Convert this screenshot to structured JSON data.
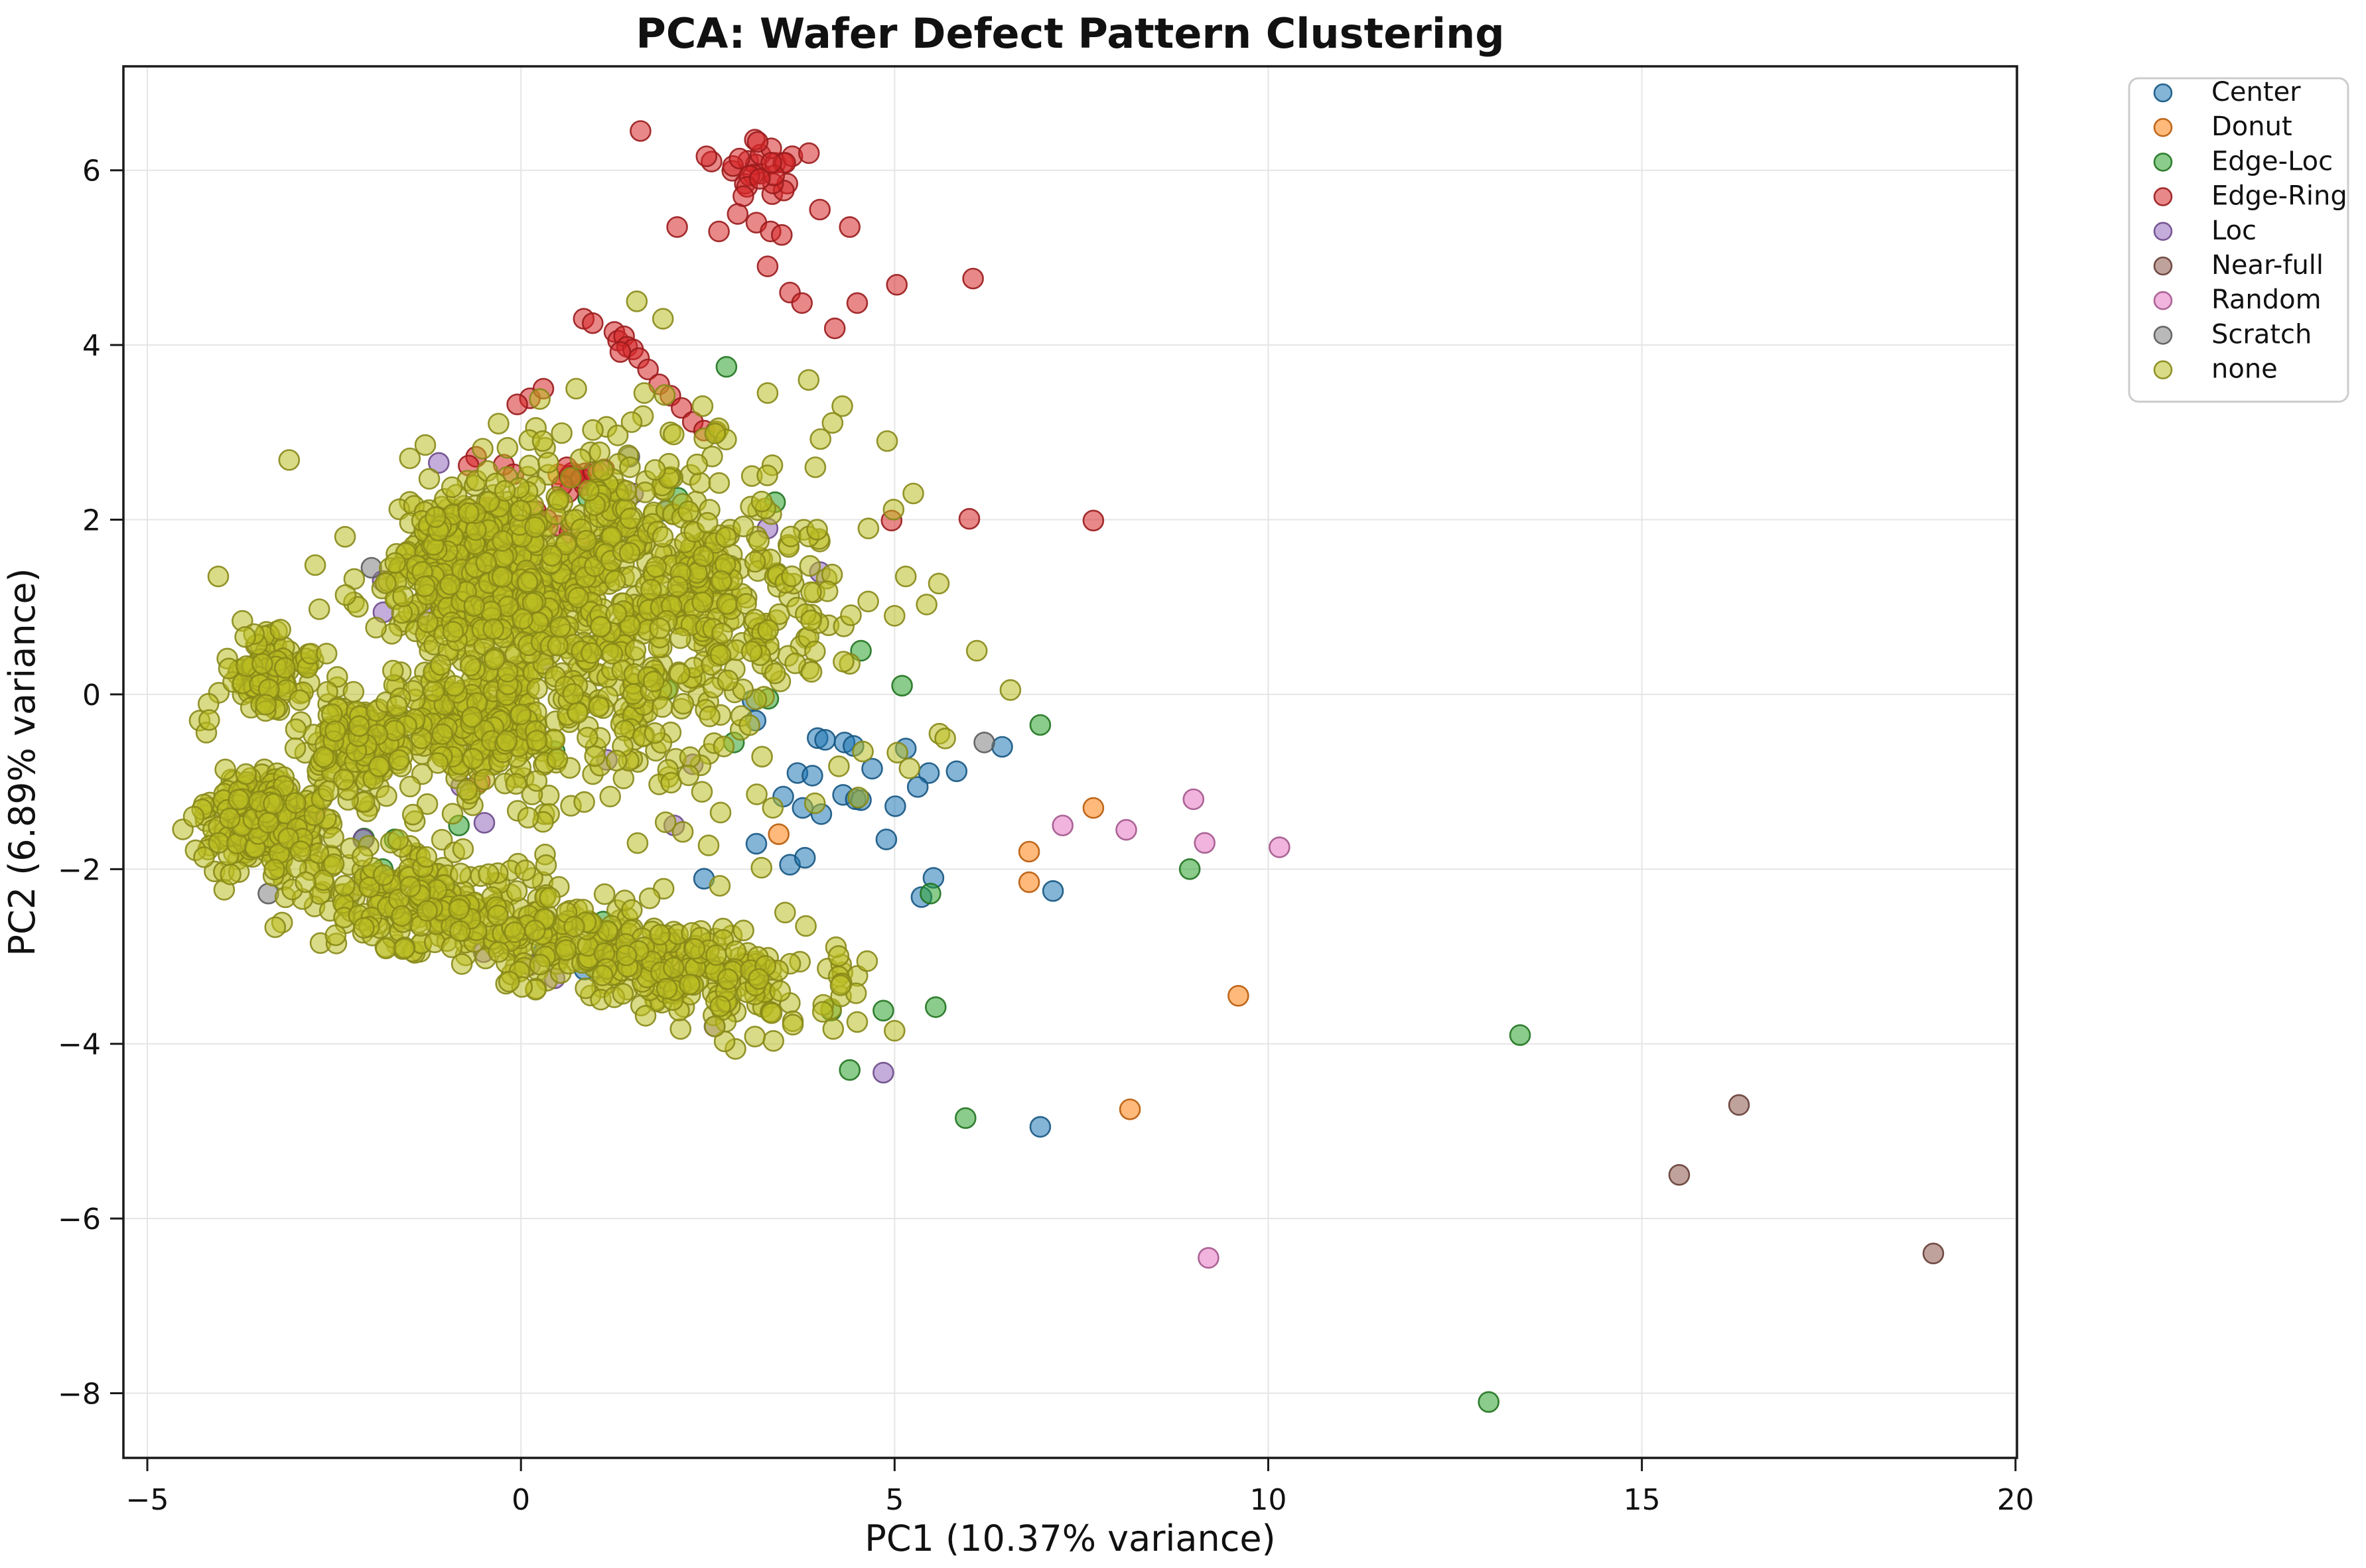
{
  "title": "PCA: Wafer Defect Pattern Clustering",
  "axes": {
    "xlabel": "PC1 (10.37% variance)",
    "ylabel": "PC2 (6.89% variance)",
    "xlim": [
      -5.32,
      20.02
    ],
    "ylim": [
      -8.74,
      7.19
    ],
    "xticks": [
      -5,
      0,
      5,
      10,
      15,
      20
    ],
    "yticks": [
      -8,
      -6,
      -4,
      -2,
      0,
      2,
      4,
      6
    ],
    "grid": true,
    "grid_color": "#e5e5e5",
    "spine_color": "#1a1a1a",
    "background": "#ffffff"
  },
  "legend": {
    "position": "upper-right-outside",
    "entries": [
      {
        "label": "Center",
        "color": "#1f77b4"
      },
      {
        "label": "Donut",
        "color": "#ff7f0e"
      },
      {
        "label": "Edge-Loc",
        "color": "#2ca02c"
      },
      {
        "label": "Edge-Ring",
        "color": "#d62728"
      },
      {
        "label": "Loc",
        "color": "#9467bd"
      },
      {
        "label": "Near-full",
        "color": "#8c564b"
      },
      {
        "label": "Random",
        "color": "#e377c2"
      },
      {
        "label": "Scratch",
        "color": "#7f7f7f"
      },
      {
        "label": "none",
        "color": "#bcbd22"
      }
    ]
  },
  "chart_data": {
    "type": "scatter",
    "title": "PCA: Wafer Defect Pattern Clustering",
    "xlabel": "PC1 (10.37% variance)",
    "ylabel": "PC2 (6.89% variance)",
    "xlim": [
      -5.32,
      20.02
    ],
    "ylim": [
      -8.74,
      7.19
    ],
    "xticks": [
      -5,
      0,
      5,
      10,
      15,
      20
    ],
    "yticks": [
      -8,
      -6,
      -4,
      -2,
      0,
      2,
      4,
      6
    ],
    "legend_position": "upper right outside",
    "grid": true,
    "marker": {
      "radius_px": 15,
      "fill_opacity": 0.55,
      "stroke_opacity": 0.9,
      "stroke_width": 2.6
    },
    "series": [
      {
        "name": "Center",
        "color": "#1f77b4",
        "points": [
          [
            3.1,
            -0.07
          ],
          [
            3.14,
            -0.3
          ],
          [
            3.97,
            -0.5
          ],
          [
            4.07,
            -0.52
          ],
          [
            4.33,
            -0.55
          ],
          [
            4.45,
            -0.59
          ],
          [
            3.7,
            -0.9
          ],
          [
            3.9,
            -0.93
          ],
          [
            5.46,
            -0.9
          ],
          [
            5.83,
            -0.88
          ],
          [
            5.31,
            -1.06
          ],
          [
            4.31,
            -1.15
          ],
          [
            4.48,
            -1.2
          ],
          [
            4.55,
            -1.21
          ],
          [
            3.51,
            -1.17
          ],
          [
            3.77,
            -1.3
          ],
          [
            4.02,
            -1.37
          ],
          [
            5.01,
            -1.28
          ],
          [
            4.89,
            -1.66
          ],
          [
            3.15,
            -1.71
          ],
          [
            3.6,
            -1.95
          ],
          [
            3.8,
            -1.87
          ],
          [
            5.36,
            -2.32
          ],
          [
            5.52,
            -2.1
          ],
          [
            2.45,
            -2.11
          ],
          [
            0.3,
            -2.95
          ],
          [
            0.85,
            -3.15
          ],
          [
            7.12,
            -2.25
          ],
          [
            6.44,
            -0.6
          ],
          [
            1.95,
            2.1
          ],
          [
            6.95,
            -4.95
          ],
          [
            4.7,
            -0.85
          ],
          [
            5.15,
            -0.62
          ]
        ]
      },
      {
        "name": "Donut",
        "color": "#ff7f0e",
        "points": [
          [
            3.45,
            -1.6
          ],
          [
            6.8,
            -1.8
          ],
          [
            6.8,
            -2.15
          ],
          [
            7.66,
            -1.3
          ],
          [
            9.6,
            -3.45
          ],
          [
            8.15,
            -4.75
          ],
          [
            0.5,
            2.52
          ],
          [
            2.05,
            -3.05
          ]
        ]
      },
      {
        "name": "Edge-Loc",
        "color": "#2ca02c",
        "points": [
          [
            3.31,
            -0.05
          ],
          [
            6.95,
            -0.35
          ],
          [
            8.95,
            -2.0
          ],
          [
            13.37,
            -3.9
          ],
          [
            12.95,
            -8.1
          ],
          [
            5.48,
            -2.28
          ],
          [
            2.75,
            3.75
          ],
          [
            0.9,
            2.25
          ],
          [
            2.1,
            2.25
          ],
          [
            3.4,
            2.2
          ],
          [
            4.55,
            0.5
          ],
          [
            5.1,
            0.1
          ],
          [
            1.95,
            0.05
          ],
          [
            2.85,
            -0.55
          ],
          [
            -2.1,
            -1.65
          ],
          [
            -1.85,
            -2.0
          ],
          [
            -0.83,
            -1.5
          ],
          [
            1.1,
            -2.6
          ],
          [
            2.1,
            -3.3
          ],
          [
            4.15,
            -3.62
          ],
          [
            4.85,
            -3.62
          ],
          [
            5.55,
            -3.58
          ],
          [
            4.4,
            -4.3
          ],
          [
            5.95,
            -4.85
          ],
          [
            0.45,
            -0.65
          ],
          [
            1.3,
            1.95
          ],
          [
            -1.69,
            -1.66
          ]
        ]
      },
      {
        "name": "Edge-Ring",
        "color": "#d62728",
        "points": [
          [
            1.6,
            6.45
          ],
          [
            2.55,
            6.1
          ],
          [
            2.9,
            5.5
          ],
          [
            3.15,
            5.4
          ],
          [
            3.34,
            5.3
          ],
          [
            3.49,
            5.26
          ],
          [
            4.0,
            5.55
          ],
          [
            4.4,
            5.35
          ],
          [
            2.09,
            5.35
          ],
          [
            2.65,
            5.3
          ],
          [
            3.6,
            4.6
          ],
          [
            3.76,
            4.48
          ],
          [
            6.05,
            4.76
          ],
          [
            4.2,
            4.19
          ],
          [
            0.84,
            4.3
          ],
          [
            0.96,
            4.25
          ],
          [
            1.25,
            4.15
          ],
          [
            1.3,
            4.05
          ],
          [
            1.38,
            4.1
          ],
          [
            1.42,
            3.98
          ],
          [
            1.5,
            3.95
          ],
          [
            1.33,
            3.92
          ],
          [
            1.58,
            3.85
          ],
          [
            1.7,
            3.72
          ],
          [
            1.85,
            3.55
          ],
          [
            2.0,
            3.42
          ],
          [
            2.15,
            3.28
          ],
          [
            2.3,
            3.12
          ],
          [
            2.45,
            3.02
          ],
          [
            2.61,
            3.01
          ],
          [
            0.12,
            3.39
          ],
          [
            -0.05,
            3.32
          ],
          [
            0.3,
            3.5
          ],
          [
            -0.23,
            2.63
          ],
          [
            -0.1,
            2.52
          ],
          [
            -0.45,
            2.14
          ],
          [
            -0.6,
            2.72
          ],
          [
            -0.7,
            2.62
          ],
          [
            -0.94,
            1.7
          ],
          [
            4.96,
            1.99
          ],
          [
            6.0,
            2.01
          ],
          [
            7.66,
            1.99
          ],
          [
            0.2,
            2.1
          ],
          [
            0.35,
            2.0
          ],
          [
            0.5,
            1.93
          ],
          [
            0.65,
            1.85
          ],
          [
            0.8,
            1.75
          ],
          [
            0.95,
            1.65
          ],
          [
            -0.55,
            -1.0
          ],
          [
            -2.75,
            -1.33
          ],
          [
            3.3,
            4.9
          ],
          [
            5.03,
            4.69
          ],
          [
            4.5,
            4.48
          ]
        ],
        "clusters": [
          {
            "cx": 3.27,
            "cy": 6.05,
            "sx": 0.24,
            "sy": 0.18,
            "n": 28
          },
          {
            "cx": 0.65,
            "cy": 2.5,
            "sx": 0.2,
            "sy": 0.08,
            "n": 11
          }
        ]
      },
      {
        "name": "Loc",
        "color": "#9467bd",
        "points": [
          [
            -1.1,
            2.65
          ],
          [
            0.85,
            1.6
          ],
          [
            1.5,
            2.3
          ],
          [
            3.3,
            1.9
          ],
          [
            4.0,
            1.4
          ],
          [
            1.15,
            -0.75
          ],
          [
            2.3,
            -0.8
          ],
          [
            2.05,
            -1.5
          ],
          [
            -0.5,
            -2.95
          ],
          [
            0.12,
            -3.1
          ],
          [
            -1.3,
            0.9
          ],
          [
            0.3,
            0.4
          ],
          [
            4.85,
            -4.33
          ],
          [
            -1.85,
            1.3
          ],
          [
            -1.84,
            0.94
          ],
          [
            -2.11,
            -1.66
          ],
          [
            -0.8,
            -1.05
          ],
          [
            -0.49,
            -1.47
          ],
          [
            2.59,
            -3.8
          ],
          [
            0.45,
            -3.25
          ]
        ]
      },
      {
        "name": "Near-full",
        "color": "#8c564b",
        "points": [
          [
            15.5,
            -5.5
          ],
          [
            16.3,
            -4.7
          ],
          [
            18.9,
            -6.4
          ]
        ]
      },
      {
        "name": "Random",
        "color": "#e377c2",
        "points": [
          [
            7.25,
            -1.5
          ],
          [
            8.1,
            -1.55
          ],
          [
            9.0,
            -1.2
          ],
          [
            9.15,
            -1.7
          ],
          [
            10.15,
            -1.75
          ],
          [
            9.2,
            -6.45
          ]
        ]
      },
      {
        "name": "Scratch",
        "color": "#7f7f7f",
        "points": [
          [
            -3.38,
            -2.28
          ],
          [
            -2.3,
            -2.32
          ],
          [
            6.2,
            -0.55
          ],
          [
            1.45,
            2.72
          ],
          [
            -0.5,
            2.02
          ],
          [
            -2.0,
            1.45
          ]
        ]
      },
      {
        "name": "none",
        "color": "#bcbd22",
        "points": [
          [
            0.74,
            3.5
          ],
          [
            2.43,
            3.3
          ],
          [
            3.09,
            2.5
          ],
          [
            3.94,
            2.6
          ],
          [
            4.65,
            1.9
          ],
          [
            5.15,
            1.35
          ],
          [
            4.9,
            2.9
          ],
          [
            5.25,
            2.3
          ],
          [
            4.3,
            3.3
          ],
          [
            6.1,
            0.5
          ],
          [
            6.55,
            0.05
          ],
          [
            5.6,
            -0.45
          ],
          [
            5.0,
            -3.85
          ],
          [
            4.15,
            -3.6
          ],
          [
            4.5,
            -3.75
          ],
          [
            -4.3,
            -0.3
          ],
          [
            -4.22,
            -1.45
          ],
          [
            -4.05,
            1.35
          ],
          [
            1.65,
            3.45
          ],
          [
            3.3,
            3.45
          ],
          [
            1.9,
            4.3
          ],
          [
            1.55,
            4.5
          ],
          [
            3.85,
            3.6
          ],
          [
            2.0,
            3.0
          ],
          [
            0.2,
            3.05
          ],
          [
            -0.3,
            3.1
          ],
          [
            4.4,
            0.35
          ],
          [
            5.0,
            0.9
          ]
        ],
        "clusters": [
          {
            "cx": -0.8,
            "cy": 1.45,
            "sx": 0.45,
            "sy": 0.38,
            "n": 450
          },
          {
            "cx": 0.15,
            "cy": 1.2,
            "sx": 0.5,
            "sy": 0.4,
            "n": 190
          },
          {
            "cx": -0.55,
            "cy": -0.3,
            "sx": 0.5,
            "sy": 0.4,
            "n": 300
          },
          {
            "cx": -3.35,
            "cy": 0.25,
            "sx": 0.28,
            "sy": 0.22,
            "n": 115
          },
          {
            "cx": -3.4,
            "cy": -1.45,
            "sx": 0.42,
            "sy": 0.27,
            "n": 270
          },
          {
            "cx": -2.15,
            "cy": -0.55,
            "sx": 0.33,
            "sy": 0.27,
            "n": 160
          },
          {
            "cx": 1.3,
            "cy": 0.55,
            "sx": 1.15,
            "sy": 0.85,
            "n": 330
          },
          {
            "cx": 0.6,
            "cy": 2.15,
            "sx": 0.95,
            "sy": 0.42,
            "n": 120
          },
          {
            "cx": 2.6,
            "cy": 1.3,
            "sx": 0.85,
            "sy": 0.55,
            "n": 180
          },
          {
            "cx": 0.6,
            "cy": 0.2,
            "sx": 2.2,
            "sy": 1.4,
            "n": 130
          },
          {
            "cx": -2.1,
            "cy": -2.35,
            "sx": 0.7,
            "sy": 0.35,
            "n": 70
          },
          {
            "cx": 3.6,
            "cy": -3.3,
            "sx": 0.5,
            "sy": 0.28,
            "n": 30
          }
        ],
        "bands": [
          {
            "from": [
              -1.8,
              -2.25
            ],
            "to": [
              3.25,
              -3.4
            ],
            "spread": 0.28,
            "jitter_x": 0.38,
            "n": 480
          }
        ]
      }
    ]
  }
}
